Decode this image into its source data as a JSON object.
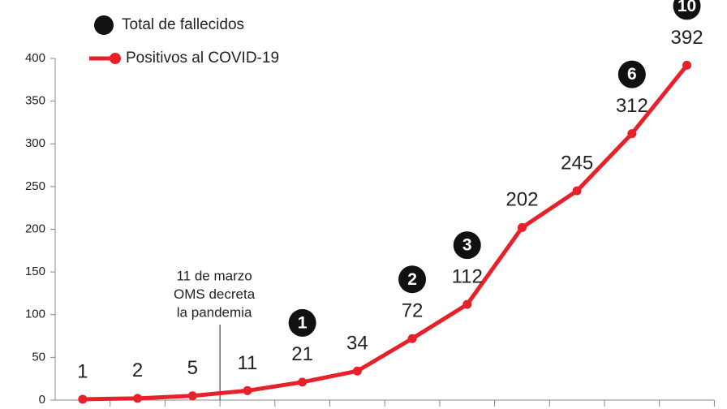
{
  "chart_data": {
    "type": "line",
    "categories": [
      null,
      null,
      null,
      null,
      null,
      null,
      null,
      null,
      null,
      null,
      null,
      null
    ],
    "series": [
      {
        "name": "Positivos al COVID-19",
        "color": "#e8202a",
        "values": [
          1,
          2,
          5,
          11,
          21,
          34,
          72,
          112,
          202,
          245,
          312,
          392
        ]
      },
      {
        "name": "Total de fallecidos",
        "color": "#111111",
        "values": [
          null,
          null,
          null,
          null,
          1,
          null,
          2,
          3,
          null,
          null,
          6,
          10
        ]
      }
    ],
    "ylim": [
      0,
      400
    ],
    "yticks": [
      0,
      50,
      100,
      150,
      200,
      250,
      300,
      350,
      400
    ],
    "annotation": {
      "category": 2.5,
      "lines": [
        "11 de marzo",
        "OMS decreta",
        "la pandemia"
      ]
    }
  }
}
